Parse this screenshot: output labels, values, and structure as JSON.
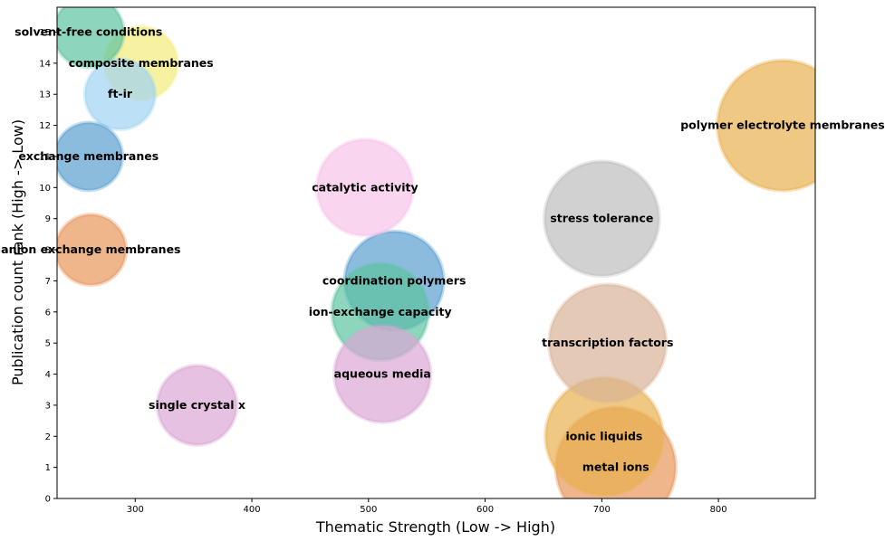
{
  "chart_data": {
    "type": "scatter",
    "title": "",
    "xlabel": "Thematic Strength (Low -> High)",
    "ylabel": "Publication count rank (High -> Low)",
    "xlim": [
      233,
      883
    ],
    "ylim": [
      0,
      15.8
    ],
    "xticks": [
      300,
      400,
      500,
      600,
      700,
      800
    ],
    "yticks": [
      0,
      1,
      2,
      3,
      4,
      5,
      6,
      7,
      8,
      9,
      10,
      11,
      12,
      13,
      14,
      15
    ],
    "grid": false,
    "legend": "none",
    "series": [
      {
        "points": [
          {
            "label": "polymer electrolyte membranes",
            "x": 855,
            "y": 12,
            "size": 1.0,
            "color": "#e8b04f"
          },
          {
            "label": "metal ions",
            "x": 712,
            "y": 1,
            "size": 0.92,
            "color": "#e8955a"
          },
          {
            "label": "ionic liquids",
            "x": 702,
            "y": 2,
            "size": 0.9,
            "color": "#e8b04f"
          },
          {
            "label": "transcription factors",
            "x": 705,
            "y": 5,
            "size": 0.9,
            "color": "#d9b497"
          },
          {
            "label": "stress tolerance",
            "x": 700,
            "y": 9,
            "size": 0.88,
            "color": "#bdbdbd"
          },
          {
            "label": "coordination polymers",
            "x": 522,
            "y": 7,
            "size": 0.76,
            "color": "#5aa0d0"
          },
          {
            "label": "ion-exchange capacity",
            "x": 510,
            "y": 6,
            "size": 0.74,
            "color": "#5cc3a0"
          },
          {
            "label": "aqueous media",
            "x": 512,
            "y": 4,
            "size": 0.74,
            "color": "#dba7d5"
          },
          {
            "label": "catalytic activity",
            "x": 497,
            "y": 10,
            "size": 0.74,
            "color": "#f7c3e8"
          },
          {
            "label": "single crystal x",
            "x": 353,
            "y": 3,
            "size": 0.61,
            "color": "#dba7d5"
          },
          {
            "label": "ft-ir",
            "x": 287,
            "y": 13,
            "size": 0.54,
            "color": "#9fd3f2"
          },
          {
            "label": "composite membranes",
            "x": 305,
            "y": 14,
            "size": 0.56,
            "color": "#f2ed7a"
          },
          {
            "label": "exchange membranes",
            "x": 260,
            "y": 11,
            "size": 0.52,
            "color": "#5aa0d0"
          },
          {
            "label": "anion exchange membranes",
            "x": 262,
            "y": 8,
            "size": 0.54,
            "color": "#e8955a"
          },
          {
            "label": "solvent-free conditions",
            "x": 260,
            "y": 15,
            "size": 0.54,
            "color": "#5cc3a0"
          }
        ]
      }
    ]
  }
}
